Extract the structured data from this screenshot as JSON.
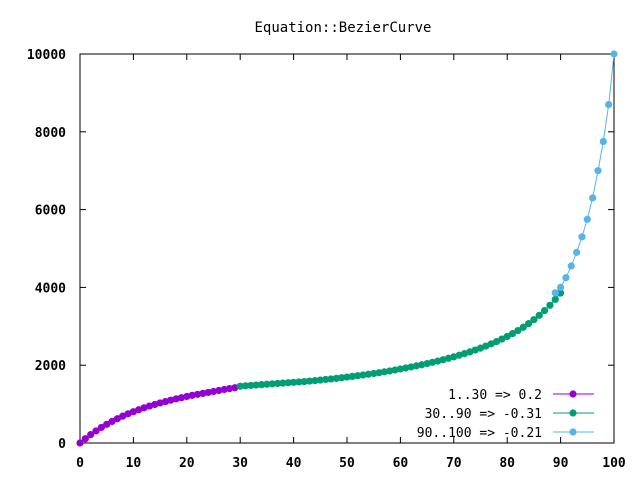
{
  "chart_data": {
    "type": "line",
    "title": "Equation::BezierCurve",
    "xlabel": "",
    "ylabel": "",
    "xlim": [
      0,
      100
    ],
    "ylim": [
      0,
      10000
    ],
    "x_ticks": [
      0,
      10,
      20,
      30,
      40,
      50,
      60,
      70,
      80,
      90,
      100
    ],
    "y_ticks": [
      0,
      2000,
      4000,
      6000,
      8000,
      10000
    ],
    "x_tick_labels": [
      "0",
      "10",
      "20",
      "30",
      "40",
      "50",
      "60",
      "70",
      "80",
      "90",
      "100"
    ],
    "y_tick_labels": [
      "0",
      "2000",
      "4000",
      "6000",
      "8000",
      "10000"
    ],
    "grid": false,
    "legend_position": "bottom-right",
    "series": [
      {
        "name": "1..30 => 0.2",
        "color": "#9400d3",
        "x": [
          0,
          1,
          2,
          3,
          4,
          5,
          6,
          7,
          8,
          9,
          10,
          11,
          12,
          13,
          14,
          15,
          16,
          17,
          18,
          19,
          20,
          21,
          22,
          23,
          24,
          25,
          26,
          27,
          28,
          29
        ],
        "y": [
          0,
          110,
          215,
          310,
          400,
          480,
          555,
          625,
          690,
          750,
          805,
          855,
          905,
          950,
          990,
          1030,
          1065,
          1100,
          1135,
          1165,
          1195,
          1225,
          1250,
          1275,
          1300,
          1325,
          1350,
          1375,
          1400,
          1420
        ]
      },
      {
        "name": "30..90 => -0.31",
        "color": "#009e73",
        "x": [
          30,
          31,
          32,
          33,
          34,
          35,
          36,
          37,
          38,
          39,
          40,
          41,
          42,
          43,
          44,
          45,
          46,
          47,
          48,
          49,
          50,
          51,
          52,
          53,
          54,
          55,
          56,
          57,
          58,
          59,
          60,
          61,
          62,
          63,
          64,
          65,
          66,
          67,
          68,
          69,
          70,
          71,
          72,
          73,
          74,
          75,
          76,
          77,
          78,
          79,
          80,
          81,
          82,
          83,
          84,
          85,
          86,
          87,
          88,
          89,
          90
        ],
        "y": [
          1460,
          1470,
          1480,
          1490,
          1500,
          1510,
          1520,
          1530,
          1540,
          1550,
          1560,
          1570,
          1580,
          1592,
          1605,
          1618,
          1632,
          1647,
          1662,
          1678,
          1695,
          1712,
          1730,
          1748,
          1767,
          1787,
          1808,
          1830,
          1853,
          1877,
          1902,
          1928,
          1955,
          1983,
          2012,
          2042,
          2074,
          2107,
          2142,
          2178,
          2216,
          2256,
          2298,
          2342,
          2389,
          2439,
          2492,
          2548,
          2608,
          2672,
          2740,
          2812,
          2890,
          2975,
          3068,
          3170,
          3282,
          3405,
          3540,
          3690,
          3855
        ]
      },
      {
        "name": "90..100 => -0.21",
        "color": "#56b4e9",
        "x": [
          89,
          90,
          91,
          92,
          93,
          94,
          95,
          96,
          97,
          98,
          99,
          100
        ],
        "y": [
          3860,
          4000,
          4250,
          4550,
          4900,
          5300,
          5750,
          6300,
          7000,
          7750,
          8700,
          10000
        ]
      }
    ]
  }
}
